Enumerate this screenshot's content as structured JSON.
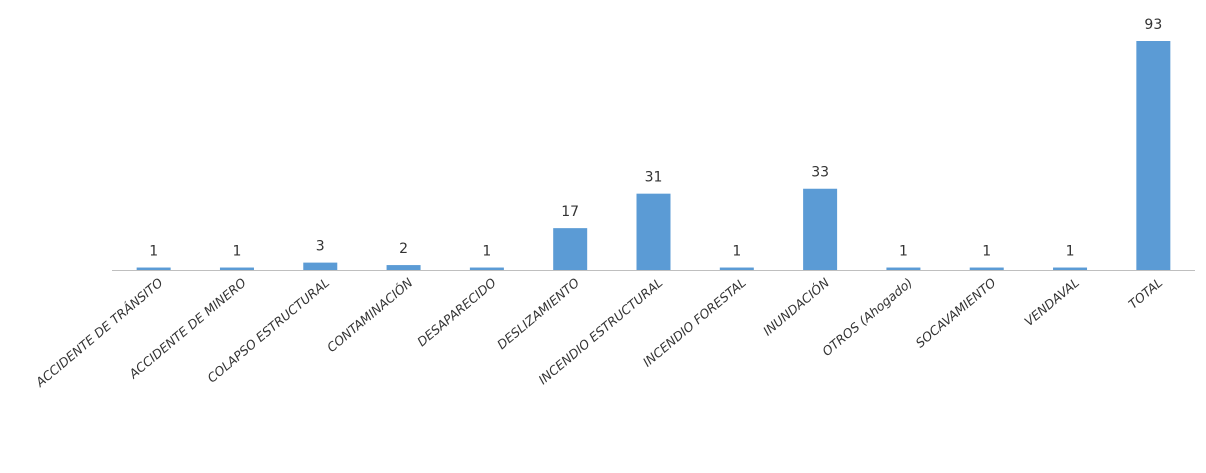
{
  "chart_data": {
    "type": "bar",
    "categories": [
      "ACCIDENTE DE TRÁNSITO",
      "ACCIDENTE DE MINERO",
      "COLAPSO ESTRUCTURAL",
      "CONTAMINACIÓN",
      "DESAPARECIDO",
      "DESLIZAMIENTO",
      "INCENDIO ESTRUCTURAL",
      "INCENDIO FORESTAL",
      "INUNDACIÓN",
      "OTROS (Ahogado)",
      "SOCAVAMIENTO",
      "VENDAVAL",
      "TOTAL"
    ],
    "values": [
      1,
      1,
      3,
      2,
      1,
      17,
      31,
      1,
      33,
      1,
      1,
      1,
      93
    ],
    "color": "#5b9bd5"
  }
}
